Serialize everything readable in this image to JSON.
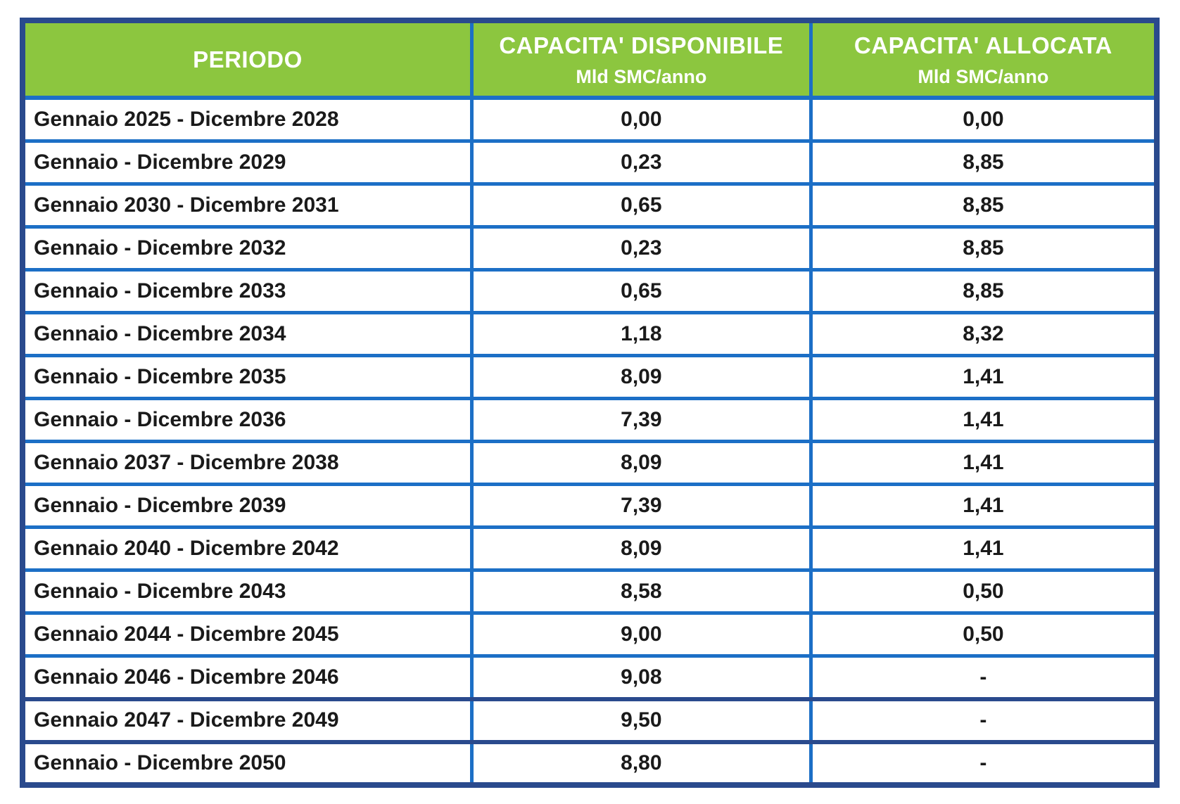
{
  "table": {
    "columns": [
      {
        "title": "PERIODO",
        "unit": ""
      },
      {
        "title": "CAPACITA' DISPONIBILE",
        "unit": "Mld SMC/anno"
      },
      {
        "title": "CAPACITA' ALLOCATA",
        "unit": "Mld SMC/anno"
      }
    ],
    "rows": [
      {
        "period": "Gennaio 2025 - Dicembre 2028",
        "available": "0,00",
        "allocated": "0,00"
      },
      {
        "period": "Gennaio - Dicembre 2029",
        "available": "0,23",
        "allocated": "8,85"
      },
      {
        "period": "Gennaio 2030 - Dicembre 2031",
        "available": "0,65",
        "allocated": "8,85"
      },
      {
        "period": "Gennaio - Dicembre 2032",
        "available": "0,23",
        "allocated": "8,85"
      },
      {
        "period": "Gennaio - Dicembre 2033",
        "available": "0,65",
        "allocated": "8,85"
      },
      {
        "period": "Gennaio - Dicembre 2034",
        "available": "1,18",
        "allocated": "8,32"
      },
      {
        "period": "Gennaio - Dicembre 2035",
        "available": "8,09",
        "allocated": "1,41"
      },
      {
        "period": "Gennaio - Dicembre 2036",
        "available": "7,39",
        "allocated": "1,41"
      },
      {
        "period": "Gennaio 2037 - Dicembre 2038",
        "available": "8,09",
        "allocated": "1,41"
      },
      {
        "period": "Gennaio - Dicembre 2039",
        "available": "7,39",
        "allocated": "1,41"
      },
      {
        "period": "Gennaio 2040 - Dicembre 2042",
        "available": "8,09",
        "allocated": "1,41"
      },
      {
        "period": "Gennaio - Dicembre 2043",
        "available": "8,58",
        "allocated": "0,50"
      },
      {
        "period": "Gennaio 2044 - Dicembre 2045",
        "available": "9,00",
        "allocated": "0,50"
      },
      {
        "period": "Gennaio 2046 - Dicembre 2046",
        "available": "9,08",
        "allocated": "-"
      },
      {
        "period": "Gennaio 2047 - Dicembre 2049",
        "available": "9,50",
        "allocated": "-"
      },
      {
        "period": "Gennaio - Dicembre 2050",
        "available": "8,80",
        "allocated": "-"
      }
    ]
  },
  "colors": {
    "header_background": "#8CC63F",
    "header_text": "#FFFFFF",
    "inner_border": "#1C6FC6",
    "outer_border": "#2A4A8D",
    "cell_text": "#1A1A1A"
  },
  "chart_data": {
    "type": "table",
    "title": "",
    "columns": [
      "PERIODO",
      "CAPACITA' DISPONIBILE Mld SMC/anno",
      "CAPACITA' ALLOCATA Mld SMC/anno"
    ],
    "unit": "Mld SMC/anno",
    "decimal_separator": ",",
    "rows": [
      {
        "period": "Gennaio 2025 - Dicembre 2028",
        "capacita_disponibile": 0.0,
        "capacita_allocata": 0.0
      },
      {
        "period": "Gennaio - Dicembre 2029",
        "capacita_disponibile": 0.23,
        "capacita_allocata": 8.85
      },
      {
        "period": "Gennaio 2030 - Dicembre 2031",
        "capacita_disponibile": 0.65,
        "capacita_allocata": 8.85
      },
      {
        "period": "Gennaio - Dicembre 2032",
        "capacita_disponibile": 0.23,
        "capacita_allocata": 8.85
      },
      {
        "period": "Gennaio - Dicembre 2033",
        "capacita_disponibile": 0.65,
        "capacita_allocata": 8.85
      },
      {
        "period": "Gennaio - Dicembre 2034",
        "capacita_disponibile": 1.18,
        "capacita_allocata": 8.32
      },
      {
        "period": "Gennaio - Dicembre 2035",
        "capacita_disponibile": 8.09,
        "capacita_allocata": 1.41
      },
      {
        "period": "Gennaio - Dicembre 2036",
        "capacita_disponibile": 7.39,
        "capacita_allocata": 1.41
      },
      {
        "period": "Gennaio 2037 - Dicembre 2038",
        "capacita_disponibile": 8.09,
        "capacita_allocata": 1.41
      },
      {
        "period": "Gennaio - Dicembre 2039",
        "capacita_disponibile": 7.39,
        "capacita_allocata": 1.41
      },
      {
        "period": "Gennaio 2040 - Dicembre 2042",
        "capacita_disponibile": 8.09,
        "capacita_allocata": 1.41
      },
      {
        "period": "Gennaio - Dicembre 2043",
        "capacita_disponibile": 8.58,
        "capacita_allocata": 0.5
      },
      {
        "period": "Gennaio 2044 - Dicembre 2045",
        "capacita_disponibile": 9.0,
        "capacita_allocata": 0.5
      },
      {
        "period": "Gennaio 2046 - Dicembre 2046",
        "capacita_disponibile": 9.08,
        "capacita_allocata": null
      },
      {
        "period": "Gennaio 2047 - Dicembre 2049",
        "capacita_disponibile": 9.5,
        "capacita_allocata": null
      },
      {
        "period": "Gennaio - Dicembre 2050",
        "capacita_disponibile": 8.8,
        "capacita_allocata": null
      }
    ]
  }
}
